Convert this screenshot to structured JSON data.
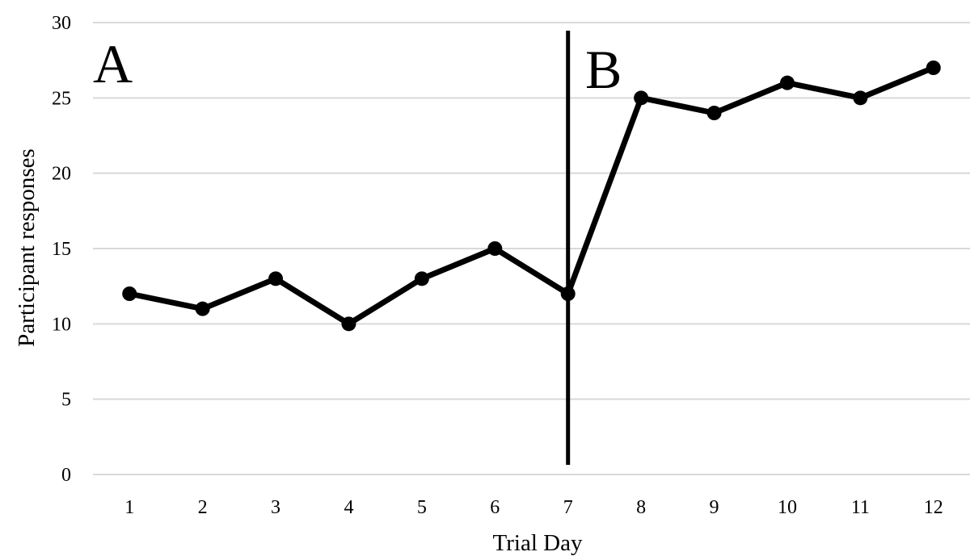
{
  "chart_data": {
    "type": "line",
    "title": "",
    "xlabel": "Trial Day",
    "ylabel": "Participant responses",
    "categories": [
      "1",
      "2",
      "3",
      "4",
      "5",
      "6",
      "7",
      "8",
      "9",
      "10",
      "11",
      "12"
    ],
    "series": [
      {
        "values": [
          12,
          11,
          13,
          10,
          13,
          15,
          12,
          25,
          24,
          26,
          25,
          27
        ]
      }
    ],
    "ylim": [
      0,
      30
    ],
    "yticks": [
      0,
      5,
      10,
      15,
      20,
      25,
      30
    ],
    "grid": "horizontal",
    "legend": "none",
    "phase_change_after_category": "7",
    "phase_labels": [
      "A",
      "B"
    ],
    "colors": {
      "line": "#000000",
      "grid": "#d9d9d9",
      "phase_line": "#000000"
    }
  }
}
